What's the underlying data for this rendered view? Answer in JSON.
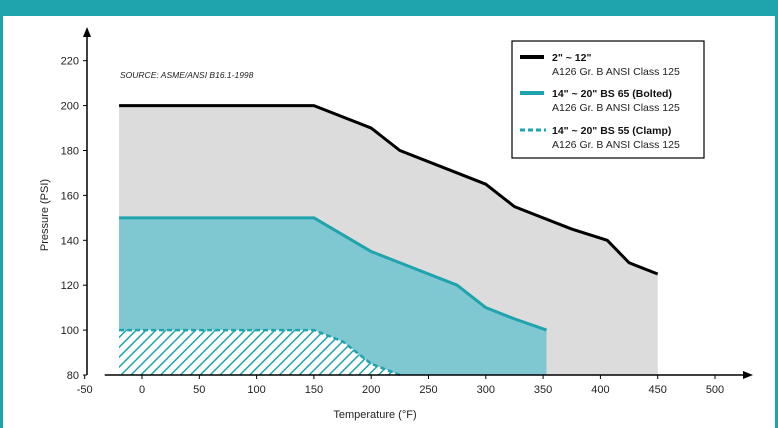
{
  "chart_data": {
    "type": "area",
    "source": "SOURCE: ASME/ANSI B16.1-1998",
    "xlabel": "Temperature (°F)",
    "ylabel": "Pressure (PSI)",
    "xlim": [
      -50,
      500
    ],
    "ylim": [
      80,
      220
    ],
    "x_ticks": [
      -50,
      0,
      50,
      100,
      150,
      200,
      250,
      300,
      350,
      400,
      450,
      500
    ],
    "y_ticks": [
      80,
      100,
      120,
      140,
      160,
      180,
      200,
      220
    ],
    "legend_position": "top-right",
    "series": [
      {
        "name": "2\" ~ 12\"",
        "subtitle": "A126 Gr. B ANSI Class 125",
        "color": "#000000",
        "fill": "#dcdcdc",
        "style": "solid",
        "points": [
          [
            -20,
            200
          ],
          [
            150,
            200
          ],
          [
            200,
            190
          ],
          [
            225,
            180
          ],
          [
            275,
            170
          ],
          [
            300,
            165
          ],
          [
            325,
            155
          ],
          [
            350,
            150
          ],
          [
            375,
            145
          ],
          [
            406,
            140
          ],
          [
            425,
            130
          ],
          [
            450,
            125
          ]
        ]
      },
      {
        "name": "14\" ~ 20\" BS 65 (Bolted)",
        "subtitle": "A126 Gr. B ANSI Class 125",
        "color": "#1fa3ad",
        "fill": "#7fc8d2",
        "style": "solid",
        "points": [
          [
            -20,
            150
          ],
          [
            150,
            150
          ],
          [
            200,
            135
          ],
          [
            225,
            130
          ],
          [
            275,
            120
          ],
          [
            300,
            110
          ],
          [
            325,
            105
          ],
          [
            353,
            100
          ]
        ]
      },
      {
        "name": "14\" ~ 20\" BS 55 (Clamp)",
        "subtitle": "A126 Gr. B ANSI Class 125",
        "color": "#1fa3ad",
        "fill": "#1fa3ad",
        "style": "dashed-hatched",
        "points": [
          [
            -20,
            100
          ],
          [
            150,
            100
          ],
          [
            175,
            95
          ],
          [
            200,
            85
          ],
          [
            225,
            80
          ]
        ]
      }
    ]
  }
}
